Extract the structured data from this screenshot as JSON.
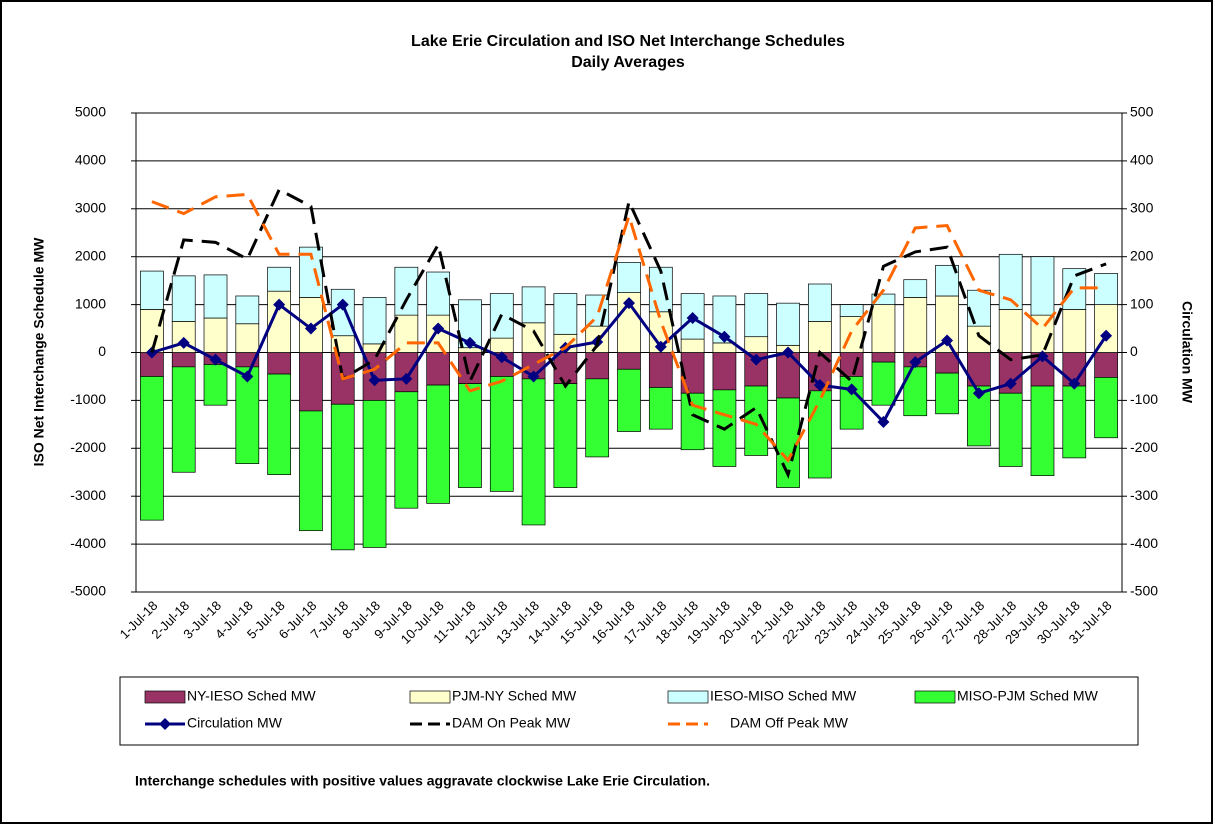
{
  "chart_data": {
    "type": "bar",
    "title": "Lake Erie Circulation and ISO Net Interchange Schedules",
    "subtitle": "Daily Averages",
    "y_label": "ISO Net Interchange Schedule MW",
    "y2_label": "Circulation MW",
    "footnote": "Interchange schedules with positive values aggravate clockwise Lake Erie Circulation.",
    "categories": [
      "1-Jul-18",
      "2-Jul-18",
      "3-Jul-18",
      "4-Jul-18",
      "5-Jul-18",
      "6-Jul-18",
      "7-Jul-18",
      "8-Jul-18",
      "9-Jul-18",
      "10-Jul-18",
      "11-Jul-18",
      "12-Jul-18",
      "13-Jul-18",
      "14-Jul-18",
      "15-Jul-18",
      "16-Jul-18",
      "17-Jul-18",
      "18-Jul-18",
      "19-Jul-18",
      "20-Jul-18",
      "21-Jul-18",
      "22-Jul-18",
      "23-Jul-18",
      "24-Jul-18",
      "25-Jul-18",
      "26-Jul-18",
      "27-Jul-18",
      "28-Jul-18",
      "29-Jul-18",
      "30-Jul-18",
      "31-Jul-18"
    ],
    "stacked": true,
    "grid": true,
    "ylim": [
      -5000,
      5000
    ],
    "yticks": [
      -5000,
      -4000,
      -3000,
      -2000,
      -1000,
      0,
      1000,
      2000,
      3000,
      4000,
      5000
    ],
    "y2lim": [
      -500,
      500
    ],
    "y2ticks": [
      -500,
      -400,
      -300,
      -200,
      -100,
      0,
      100,
      200,
      300,
      400,
      500
    ],
    "series": [
      {
        "name": "NY-IESO Sched MW",
        "type": "bar",
        "color": "#993366",
        "values": [
          -500,
          -300,
          -250,
          -300,
          -450,
          -1220,
          -1080,
          -1000,
          -820,
          -680,
          -650,
          -500,
          -550,
          -650,
          -550,
          -350,
          -730,
          -850,
          -780,
          -700,
          -950,
          -800,
          -500,
          -200,
          -300,
          -430,
          -700,
          -850,
          -700,
          -700,
          -520
        ]
      },
      {
        "name": "PJM-NY Sched MW",
        "type": "bar",
        "color": "#ffffcc",
        "values": [
          900,
          650,
          720,
          600,
          1280,
          1150,
          350,
          180,
          780,
          780,
          100,
          300,
          620,
          380,
          550,
          1250,
          850,
          280,
          200,
          330,
          150,
          650,
          750,
          1000,
          1150,
          1180,
          550,
          900,
          780,
          900,
          1000
        ]
      },
      {
        "name": "IESO-MISO Sched MW",
        "type": "bar",
        "color": "#ccffff",
        "values": [
          800,
          950,
          900,
          580,
          500,
          1050,
          970,
          970,
          1000,
          900,
          1000,
          930,
          750,
          850,
          650,
          630,
          930,
          950,
          980,
          900,
          880,
          780,
          250,
          220,
          370,
          640,
          750,
          1150,
          1220,
          850,
          650
        ]
      },
      {
        "name": "MISO-PJM Sched MW",
        "type": "bar",
        "color": "#33ff33",
        "values": [
          -3000,
          -2200,
          -850,
          -2020,
          -2100,
          -2500,
          -3040,
          -3070,
          -2430,
          -2470,
          -2170,
          -2400,
          -3050,
          -2170,
          -1630,
          -1300,
          -870,
          -1180,
          -1600,
          -1450,
          -1870,
          -1820,
          -1100,
          -900,
          -1020,
          -850,
          -1250,
          -1530,
          -1870,
          -1500,
          -1260
        ]
      },
      {
        "name": "Circulation MW",
        "type": "line",
        "axis": "y2",
        "color": "#000080",
        "marker": "diamond",
        "values": [
          0,
          20,
          -15,
          -50,
          100,
          50,
          100,
          -58,
          -55,
          50,
          20,
          -10,
          -50,
          10,
          22,
          103,
          12,
          72,
          33,
          -15,
          0,
          -68,
          -77,
          -145,
          -20,
          25,
          -85,
          -65,
          -8,
          -65,
          35
        ]
      },
      {
        "name": "DAM On Peak MW",
        "type": "line",
        "axis": "y2",
        "color": "#000000",
        "dash": true,
        "values": [
          0,
          235,
          230,
          195,
          340,
          305,
          -55,
          -15,
          110,
          225,
          -60,
          80,
          45,
          -70,
          15,
          315,
          170,
          -130,
          -160,
          -115,
          -255,
          0,
          -60,
          180,
          210,
          220,
          35,
          -15,
          -5,
          160,
          185
        ]
      },
      {
        "name": "DAM Off Peak MW",
        "type": "line",
        "axis": "y2",
        "color": "#ff6600",
        "dash": true,
        "values": [
          315,
          290,
          325,
          330,
          205,
          205,
          -55,
          -35,
          20,
          20,
          -80,
          -60,
          -25,
          10,
          75,
          285,
          65,
          -110,
          -130,
          -150,
          -225,
          -100,
          45,
          130,
          260,
          265,
          130,
          110,
          50,
          135,
          135
        ]
      }
    ]
  }
}
